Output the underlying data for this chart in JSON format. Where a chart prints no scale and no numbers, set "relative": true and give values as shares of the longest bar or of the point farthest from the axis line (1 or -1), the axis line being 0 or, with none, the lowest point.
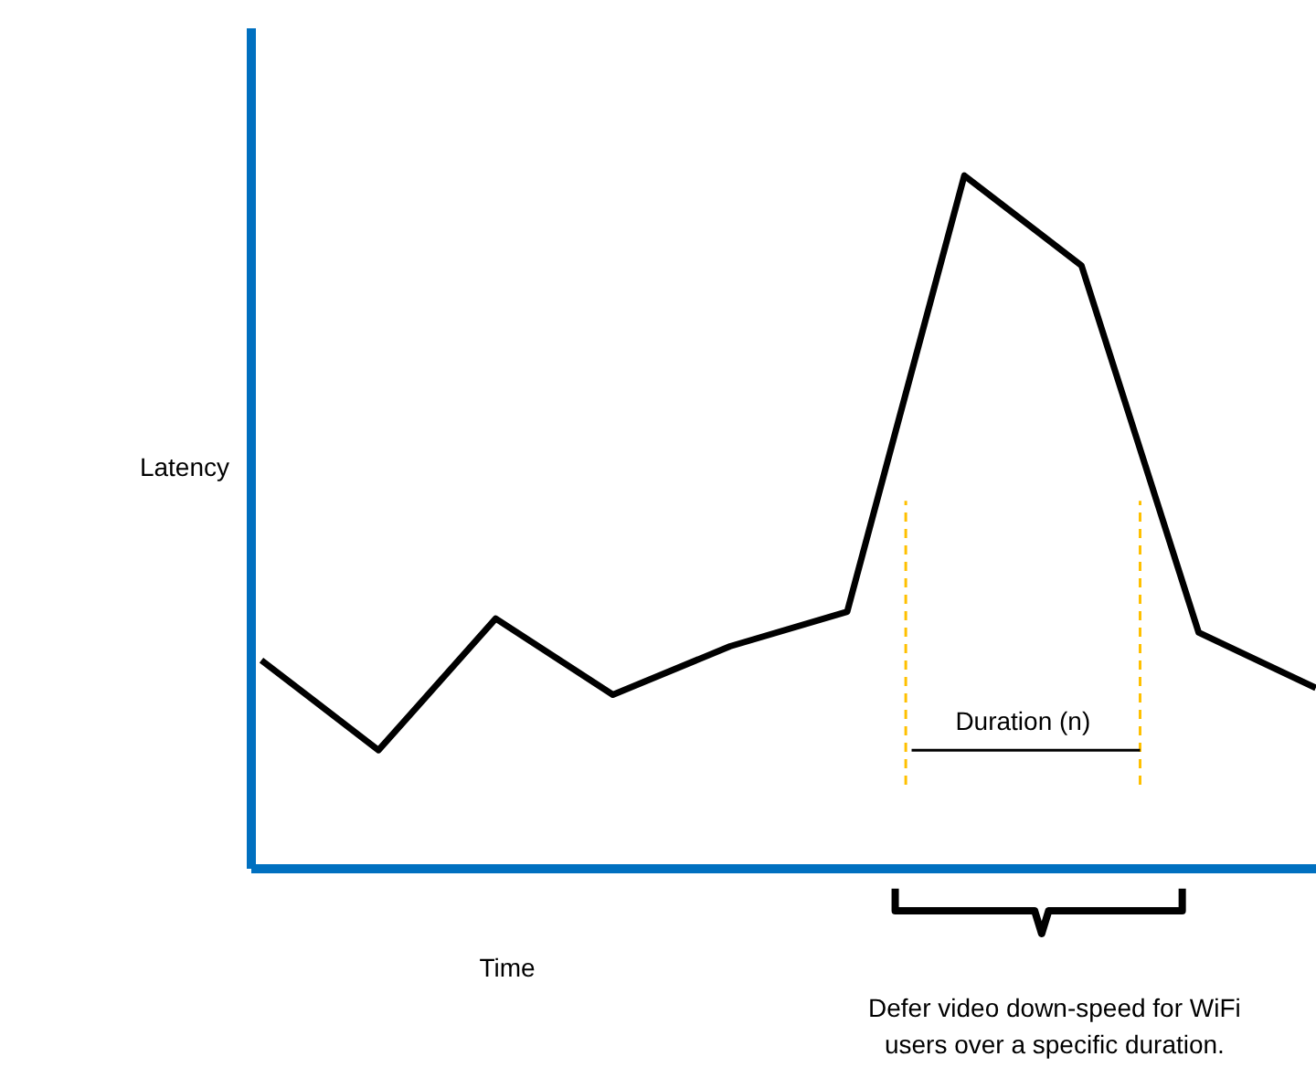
{
  "chart_data": {
    "type": "line",
    "relative": true,
    "xlabel": "Time",
    "ylabel": "Latency",
    "categories": [
      null,
      null,
      null,
      null,
      null,
      null,
      null,
      null,
      null,
      null
    ],
    "series": [
      {
        "color": "#000000",
        "values": [
          0.3,
          0.17,
          0.36,
          0.25,
          0.32,
          0.37,
          1,
          0.87,
          0.34,
          0.26
        ]
      }
    ],
    "annotations": [
      "Duration (n)",
      "Defer video down-speed for WiFi users over a specific duration."
    ]
  }
}
